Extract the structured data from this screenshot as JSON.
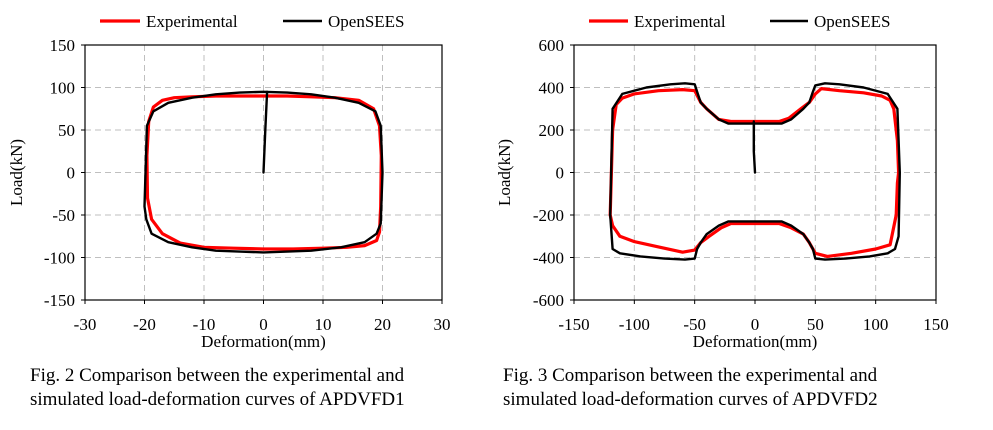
{
  "chart_data": [
    {
      "type": "line",
      "xlabel": "Deformation(mm)",
      "ylabel": "Load(kN)",
      "xlim": [
        -30,
        30
      ],
      "ylim": [
        -150,
        150
      ],
      "xticks": [
        -30,
        -20,
        -10,
        0,
        10,
        20,
        30
      ],
      "yticks": [
        -150,
        -100,
        -50,
        0,
        50,
        100,
        150
      ],
      "grid": "dashed",
      "legend": "top",
      "series": [
        {
          "name": "Experimental",
          "color": "#ff0000",
          "x": [
            -19.5,
            -19.6,
            -19.3,
            -18.5,
            -17,
            -15,
            -12,
            -8,
            -4,
            0,
            4,
            8,
            12,
            16,
            18.5,
            19.5,
            19.8,
            19.7,
            19.5,
            19,
            17,
            14,
            10,
            5,
            0,
            -5,
            -10,
            -14,
            -17,
            -18.8,
            -19.5
          ],
          "y": [
            -30,
            20,
            60,
            77,
            85,
            88,
            89,
            90,
            90,
            90,
            90,
            89,
            88,
            85,
            75,
            55,
            20,
            -40,
            -70,
            -80,
            -86,
            -88,
            -89,
            -90,
            -90,
            -89,
            -88,
            -83,
            -72,
            -55,
            -30
          ]
        },
        {
          "name": "OpenSEES",
          "color": "#000000",
          "x": [
            0,
            0.3,
            0.5,
            0.6,
            -20,
            -19.6,
            -18.5,
            -16,
            -12,
            -8,
            -4,
            0,
            4,
            8,
            12,
            16,
            18.8,
            19.7,
            20,
            19.7,
            19,
            17,
            13,
            8,
            4,
            0,
            -4,
            -8,
            -12,
            -16,
            -18.8,
            -19.7,
            -20
          ],
          "y": [
            0,
            50,
            80,
            95,
            -40,
            55,
            72,
            82,
            88,
            92,
            94,
            95,
            94,
            92,
            88,
            82,
            72,
            55,
            0,
            -60,
            -72,
            -82,
            -88,
            -92,
            -93,
            -94,
            -93,
            -92,
            -88,
            -82,
            -72,
            -55,
            -40
          ],
          "segments": [
            [
              0,
              4
            ],
            [
              4,
              33
            ]
          ]
        }
      ]
    },
    {
      "type": "line",
      "xlabel": "Deformation(mm)",
      "ylabel": "Load(kN)",
      "xlim": [
        -150,
        150
      ],
      "ylim": [
        -600,
        600
      ],
      "xticks": [
        -150,
        -100,
        -50,
        0,
        50,
        100,
        150
      ],
      "yticks": [
        -600,
        -400,
        -200,
        0,
        200,
        400,
        600
      ],
      "grid": "dashed",
      "legend": "top",
      "series": [
        {
          "name": "Experimental",
          "color": "#ff0000",
          "x": [
            -120,
            -118,
            -115,
            -110,
            -100,
            -80,
            -60,
            -50,
            -45,
            -40,
            -30,
            -20,
            0,
            20,
            28,
            38,
            45,
            50,
            55,
            70,
            90,
            105,
            112,
            115,
            118,
            119,
            118,
            117,
            112,
            100,
            80,
            60,
            50,
            45,
            40,
            30,
            20,
            0,
            -20,
            -28,
            -38,
            -45,
            -50,
            -60,
            -80,
            -100,
            -112,
            -118,
            -120
          ],
          "y": [
            -200,
            200,
            320,
            350,
            370,
            385,
            390,
            385,
            330,
            300,
            250,
            240,
            240,
            240,
            255,
            300,
            330,
            370,
            395,
            385,
            375,
            360,
            340,
            300,
            150,
            0,
            -50,
            -200,
            -340,
            -360,
            -380,
            -395,
            -380,
            -330,
            -290,
            -260,
            -240,
            -240,
            -240,
            -260,
            -300,
            -330,
            -365,
            -375,
            -350,
            -325,
            -300,
            -250,
            -200
          ]
        },
        {
          "name": "OpenSEES",
          "color": "#000000",
          "x": [
            0,
            -1,
            -1,
            -1,
            -120,
            -118,
            -110,
            -90,
            -70,
            -58,
            -50,
            -48,
            -45,
            -40,
            -30,
            -22,
            0,
            22,
            30,
            40,
            45,
            48,
            50,
            58,
            70,
            90,
            110,
            118,
            120,
            119,
            116,
            110,
            95,
            75,
            58,
            50,
            48,
            45,
            40,
            30,
            22,
            0,
            -22,
            -30,
            -40,
            -45,
            -48,
            -50,
            -58,
            -75,
            -95,
            -112,
            -118,
            -120
          ],
          "y": [
            0,
            100,
            180,
            240,
            -200,
            300,
            370,
            400,
            415,
            420,
            415,
            380,
            330,
            300,
            250,
            230,
            230,
            230,
            250,
            300,
            330,
            380,
            410,
            420,
            415,
            400,
            370,
            300,
            0,
            -300,
            -360,
            -380,
            -395,
            -405,
            -410,
            -405,
            -360,
            -330,
            -290,
            -250,
            -230,
            -230,
            -230,
            -250,
            -290,
            -330,
            -360,
            -405,
            -410,
            -405,
            -395,
            -380,
            -360,
            -200
          ],
          "segments": [
            [
              0,
              4
            ],
            [
              4,
              54
            ]
          ]
        }
      ]
    }
  ],
  "captions": {
    "fig2_line1": "Fig. 2 Comparison between the experimental and",
    "fig2_line2": "simulated load-deformation curves of APDVFD1",
    "fig3_line1": "Fig. 3 Comparison between the experimental and",
    "fig3_line2": "simulated load-deformation curves of APDVFD2"
  }
}
